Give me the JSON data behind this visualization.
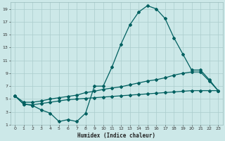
{
  "xlabel": "Humidex (Indice chaleur)",
  "bg_color": "#cce8e8",
  "line_color": "#006060",
  "grid_color": "#aacccc",
  "xlim": [
    -0.5,
    23.5
  ],
  "ylim": [
    1,
    20
  ],
  "xticks": [
    0,
    1,
    2,
    3,
    4,
    5,
    6,
    7,
    8,
    9,
    10,
    11,
    12,
    13,
    14,
    15,
    16,
    17,
    18,
    19,
    20,
    21,
    22,
    23
  ],
  "yticks": [
    1,
    3,
    5,
    7,
    9,
    11,
    13,
    15,
    17,
    19
  ],
  "line1_x": [
    0,
    1,
    2,
    3,
    4,
    5,
    6,
    7,
    8,
    9,
    10,
    11,
    12,
    13,
    14,
    15,
    16,
    17,
    18,
    19,
    20,
    21,
    22,
    23
  ],
  "line1_y": [
    5.5,
    4.2,
    4.0,
    3.3,
    2.8,
    1.5,
    1.8,
    1.5,
    2.8,
    7.0,
    7.0,
    10.0,
    13.5,
    16.5,
    18.5,
    19.5,
    19.0,
    17.5,
    14.5,
    12.0,
    9.5,
    9.5,
    8.0,
    6.3
  ],
  "line2_x": [
    0,
    1,
    2,
    3,
    4,
    5,
    6,
    7,
    8,
    9,
    10,
    11,
    12,
    13,
    14,
    15,
    16,
    17,
    18,
    19,
    20,
    21,
    22,
    23
  ],
  "line2_y": [
    5.5,
    4.5,
    4.5,
    4.7,
    5.0,
    5.2,
    5.4,
    5.6,
    6.0,
    6.2,
    6.5,
    6.7,
    6.9,
    7.2,
    7.5,
    7.8,
    8.0,
    8.3,
    8.7,
    9.0,
    9.2,
    9.2,
    7.8,
    6.3
  ],
  "line3_x": [
    0,
    1,
    2,
    3,
    4,
    5,
    6,
    7,
    8,
    9,
    10,
    11,
    12,
    13,
    14,
    15,
    16,
    17,
    18,
    19,
    20,
    21,
    22,
    23
  ],
  "line3_y": [
    5.5,
    4.2,
    4.1,
    4.3,
    4.5,
    4.7,
    4.9,
    5.0,
    5.1,
    5.2,
    5.3,
    5.4,
    5.5,
    5.6,
    5.7,
    5.8,
    5.9,
    6.0,
    6.1,
    6.2,
    6.3,
    6.3,
    6.3,
    6.3
  ]
}
